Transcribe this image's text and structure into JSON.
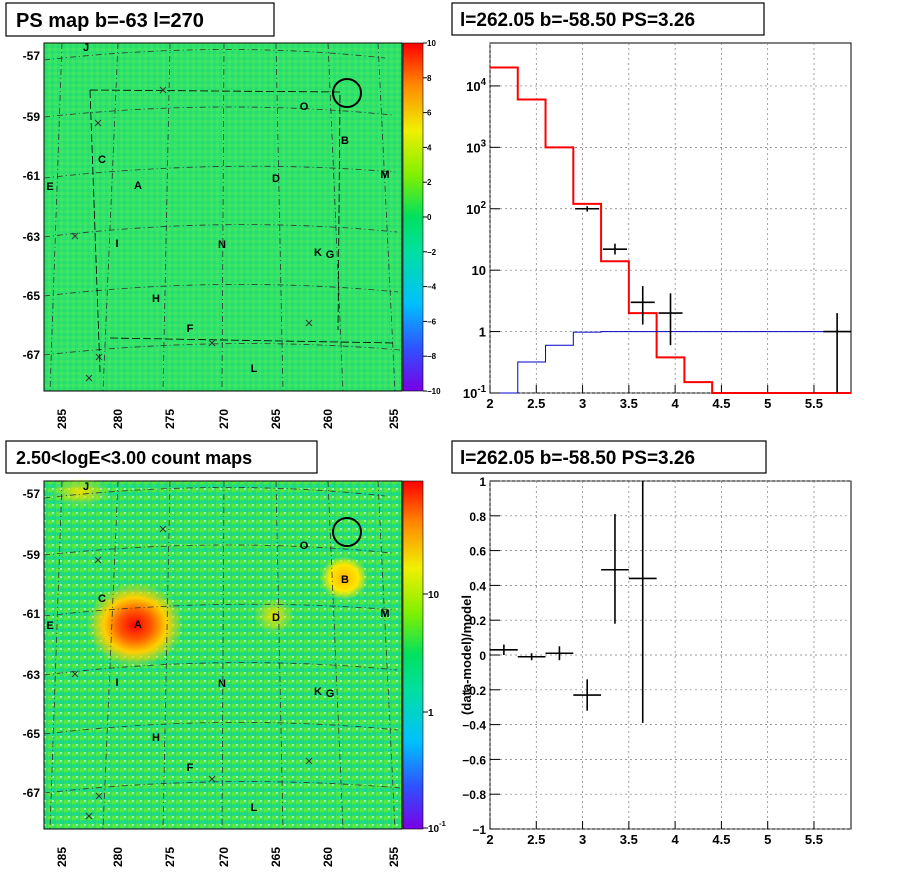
{
  "chart_data": [
    {
      "type": "heatmap",
      "title": "PS map b=-63 l=270",
      "y_ticks": [
        "-57",
        "-59",
        "-61",
        "-63",
        "-65",
        "-67"
      ],
      "x_ticks": [
        "285",
        "280",
        "275",
        "270",
        "265",
        "260",
        "255"
      ],
      "colorbar": {
        "scale": "linear",
        "range": [
          -10,
          10
        ],
        "ticks": [
          "10",
          "8",
          "6",
          "4",
          "2",
          "0",
          "−2",
          "−4",
          "−6",
          "−8",
          "−10"
        ]
      },
      "labels": [
        "J",
        "O",
        "B",
        "C",
        "E",
        "A",
        "D",
        "M",
        "I",
        "N",
        "K",
        "G",
        "H",
        "F",
        "L"
      ],
      "marked_source": "circle near top-right (l≈259, b≈-58)"
    },
    {
      "type": "line",
      "title": "l=262.05 b=-58.50 PS=3.26",
      "xlabel": "",
      "ylabel": "",
      "xlim": [
        2,
        5.9
      ],
      "ylim": [
        0.1,
        50000
      ],
      "yscale": "log",
      "grid": true,
      "x_ticks": [
        "2",
        "2.5",
        "3",
        "3.5",
        "4",
        "4.5",
        "5",
        "5.5"
      ],
      "y_ticks": [
        "10^4",
        "10^3",
        "10^2",
        "10",
        "1",
        "10^-1"
      ],
      "series": [
        {
          "color": "#ff0000",
          "kind": "step",
          "edges": [
            2.0,
            2.3,
            2.6,
            2.9,
            3.2,
            3.5,
            3.8,
            4.1,
            4.4,
            5.9
          ],
          "values": [
            20000,
            6000,
            1000,
            120,
            14,
            2.0,
            0.38,
            0.15,
            0.1
          ]
        },
        {
          "color": "#0000cc",
          "kind": "step",
          "edges": [
            2.0,
            2.3,
            2.6,
            2.9,
            3.2,
            5.9
          ],
          "values": [
            0.1,
            0.32,
            0.6,
            0.98,
            1.0
          ]
        },
        {
          "color": "#000000",
          "kind": "points",
          "points": [
            {
              "x": 3.05,
              "y": 100,
              "ylo": 90,
              "yhi": 110,
              "xw": 0.13
            },
            {
              "x": 3.35,
              "y": 22,
              "ylo": 18,
              "yhi": 27,
              "xw": 0.13
            },
            {
              "x": 3.65,
              "y": 3.0,
              "ylo": 1.3,
              "yhi": 5.5,
              "xw": 0.13
            },
            {
              "x": 3.95,
              "y": 2.0,
              "ylo": 0.6,
              "yhi": 4.2,
              "xw": 0.13
            },
            {
              "x": 5.75,
              "y": 1.0,
              "ylo": 0.1,
              "yhi": 2.0,
              "xw": 0.15
            }
          ]
        }
      ]
    },
    {
      "type": "heatmap",
      "title": "2.50<logE<3.00 count maps",
      "y_ticks": [
        "-57",
        "-59",
        "-61",
        "-63",
        "-65",
        "-67"
      ],
      "x_ticks": [
        "285",
        "280",
        "275",
        "270",
        "265",
        "260",
        "255"
      ],
      "colorbar": {
        "scale": "log",
        "ticks": [
          "10",
          "1",
          "10^-1"
        ]
      },
      "labels": [
        "J",
        "O",
        "B",
        "C",
        "E",
        "A",
        "D",
        "M",
        "I",
        "N",
        "K",
        "G",
        "H",
        "F",
        "L"
      ]
    },
    {
      "type": "scatter",
      "title": "l=262.05 b=-58.50 PS=3.26",
      "xlabel": "",
      "ylabel": "(data-model)/model",
      "xlim": [
        2,
        5.9
      ],
      "ylim": [
        -1,
        1
      ],
      "grid": true,
      "x_ticks": [
        "2",
        "2.5",
        "3",
        "3.5",
        "4",
        "4.5",
        "5",
        "5.5"
      ],
      "y_ticks": [
        "1",
        "0.8",
        "0.6",
        "0.4",
        "0.2",
        "0",
        "−0.2",
        "−0.4",
        "−0.6",
        "−0.8",
        "−1"
      ],
      "points": [
        {
          "x": 2.15,
          "y": 0.03,
          "ylo": 0.0,
          "yhi": 0.06,
          "xw": 0.15
        },
        {
          "x": 2.45,
          "y": -0.01,
          "ylo": -0.03,
          "yhi": 0.01,
          "xw": 0.15
        },
        {
          "x": 2.75,
          "y": 0.01,
          "ylo": -0.03,
          "yhi": 0.05,
          "xw": 0.15
        },
        {
          "x": 3.05,
          "y": -0.23,
          "ylo": -0.32,
          "yhi": -0.14,
          "xw": 0.15
        },
        {
          "x": 3.35,
          "y": 0.49,
          "ylo": 0.18,
          "yhi": 0.81,
          "xw": 0.15
        },
        {
          "x": 3.65,
          "y": 0.44,
          "ylo": -0.39,
          "yhi": 1.0,
          "xw": 0.15
        }
      ]
    }
  ]
}
